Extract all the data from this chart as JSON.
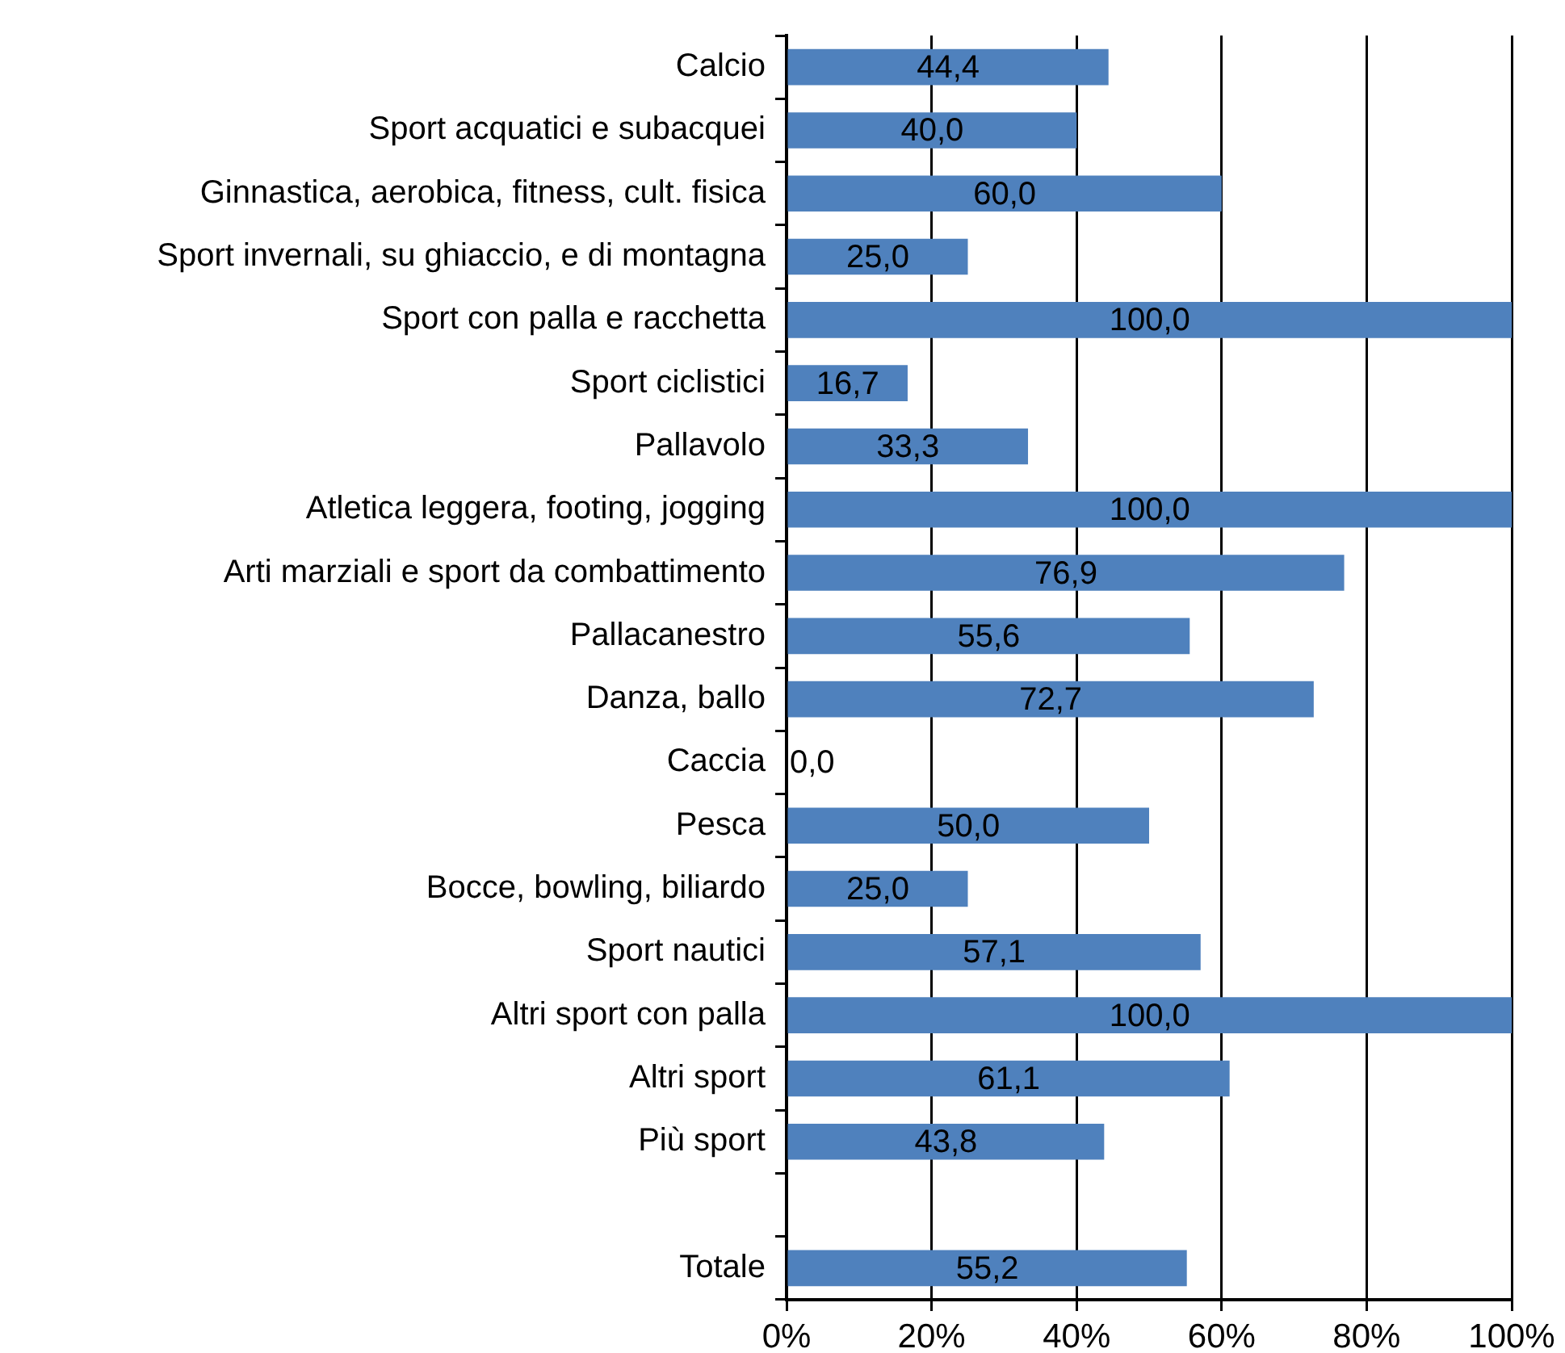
{
  "chart_data": {
    "type": "bar",
    "orientation": "horizontal",
    "categories": [
      "Calcio",
      "Sport acquatici e subacquei",
      "Ginnastica, aerobica, fitness, cult. fisica",
      "Sport invernali, su ghiaccio, e di montagna",
      "Sport con palla e racchetta",
      "Sport ciclistici",
      "Pallavolo",
      "Atletica leggera, footing, jogging",
      "Arti marziali e sport da combattimento",
      "Pallacanestro",
      "Danza, ballo",
      "Caccia",
      "Pesca",
      "Bocce, bowling, biliardo",
      "Sport nautici",
      "Altri sport con palla",
      "Altri sport",
      "Più sport",
      null,
      "Totale"
    ],
    "values": [
      44.4,
      40.0,
      60.0,
      25.0,
      100.0,
      16.7,
      33.3,
      100.0,
      76.9,
      55.6,
      72.7,
      0.0,
      50.0,
      25.0,
      57.1,
      100.0,
      61.1,
      43.8,
      null,
      55.2
    ],
    "value_labels": [
      "44,4",
      "40,0",
      "60,0",
      "25,0",
      "100,0",
      "16,7",
      "33,3",
      "100,0",
      "76,9",
      "55,6",
      "72,7",
      "0,0",
      "50,0",
      "25,0",
      "57,1",
      "100,0",
      "61,1",
      "43,8",
      null,
      "55,2"
    ],
    "color": "#4f81bd",
    "xlim": [
      0,
      100
    ],
    "xticks": [
      {
        "value": 0,
        "label": "0%"
      },
      {
        "value": 20,
        "label": "20%"
      },
      {
        "value": 40,
        "label": "40%"
      },
      {
        "value": 60,
        "label": "60%"
      },
      {
        "value": 80,
        "label": "80%"
      },
      {
        "value": 100,
        "label": "100%"
      }
    ],
    "grid": "x"
  }
}
